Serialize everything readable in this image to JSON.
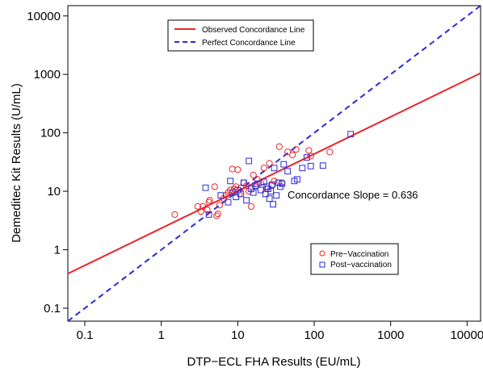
{
  "chart_data": {
    "type": "scatter",
    "xlabel": "DTP−ECL FHA Results (EU/mL)",
    "ylabel": "Demeditec Kit Results (U/mL)",
    "x_scale": "log",
    "y_scale": "log",
    "xlim": [
      0.06,
      15000
    ],
    "ylim": [
      0.06,
      15000
    ],
    "x_ticks": [
      0.1,
      1,
      10,
      100,
      1000,
      10000
    ],
    "y_ticks": [
      0.1,
      1,
      10,
      100,
      1000,
      10000
    ],
    "x_tick_labels": [
      "0.1",
      "1",
      "10",
      "100",
      "1000",
      "10000"
    ],
    "y_tick_labels": [
      "0.1",
      "1",
      "10",
      "100",
      "1000",
      "10000"
    ],
    "grid": false,
    "annotation": "Concordance Slope = 0.636",
    "lines": [
      {
        "name": "Observed Concordance Line",
        "color": "#e8262b",
        "style": "solid",
        "x": [
          0.06,
          15000
        ],
        "y": [
          0.39,
          1050
        ]
      },
      {
        "name": "Perfect Concordance Line",
        "color": "#2b2bd6",
        "style": "dashed",
        "x": [
          0.06,
          15000
        ],
        "y": [
          0.06,
          15000
        ]
      }
    ],
    "legend_lines": {
      "placement": "top-center",
      "entries": [
        "Observed Concordance Line",
        "Perfect Concordance Line"
      ]
    },
    "legend_points": {
      "placement": "bottom-right",
      "entries": [
        "Pre−Vaccination",
        "Post−vaccination"
      ]
    },
    "series": [
      {
        "name": "Pre−Vaccination",
        "marker": "circle",
        "color": "#e8262b",
        "points": [
          [
            1.5,
            4.0
          ],
          [
            3.0,
            5.5
          ],
          [
            3.3,
            4.5
          ],
          [
            3.5,
            5.5
          ],
          [
            4.0,
            4.8
          ],
          [
            4.2,
            6.5
          ],
          [
            4.3,
            7.0
          ],
          [
            5.0,
            12.0
          ],
          [
            5.3,
            3.8
          ],
          [
            5.5,
            4.1
          ],
          [
            5.8,
            5.8
          ],
          [
            6.5,
            7.5
          ],
          [
            7.0,
            8.5
          ],
          [
            7.5,
            9.5
          ],
          [
            8.0,
            10.5
          ],
          [
            8.5,
            24.0
          ],
          [
            9.0,
            11.0
          ],
          [
            9.5,
            12.0
          ],
          [
            10.0,
            23.5
          ],
          [
            10.5,
            9.0
          ],
          [
            11.0,
            11.5
          ],
          [
            12.0,
            14.0
          ],
          [
            13.0,
            12.5
          ],
          [
            14.0,
            10.0
          ],
          [
            15.0,
            5.5
          ],
          [
            16.0,
            19.0
          ],
          [
            17.0,
            12.0
          ],
          [
            18.0,
            16.0
          ],
          [
            20.0,
            14.0
          ],
          [
            22.0,
            25.0
          ],
          [
            24.0,
            11.0
          ],
          [
            26.0,
            30.0
          ],
          [
            28.0,
            12.5
          ],
          [
            30.0,
            15.0
          ],
          [
            35.0,
            58.0
          ],
          [
            38.0,
            14.0
          ],
          [
            45.0,
            47.0
          ],
          [
            52.0,
            42.0
          ],
          [
            58.0,
            52.0
          ],
          [
            85.0,
            50.0
          ],
          [
            90.0,
            40.0
          ],
          [
            160.0,
            47.0
          ]
        ]
      },
      {
        "name": "Post−vaccination",
        "marker": "square",
        "color": "#2b2bd6",
        "points": [
          [
            3.8,
            11.5
          ],
          [
            4.2,
            4.0
          ],
          [
            6.0,
            8.5
          ],
          [
            7.5,
            6.5
          ],
          [
            8.0,
            15.0
          ],
          [
            8.5,
            9.5
          ],
          [
            9.5,
            8.0
          ],
          [
            10.0,
            10.5
          ],
          [
            11.0,
            9.0
          ],
          [
            12.0,
            14.0
          ],
          [
            13.0,
            7.0
          ],
          [
            14.0,
            33.0
          ],
          [
            15.0,
            11.0
          ],
          [
            16.0,
            9.5
          ],
          [
            17.0,
            12.5
          ],
          [
            18.0,
            13.5
          ],
          [
            20.0,
            10.5
          ],
          [
            22.0,
            14.5
          ],
          [
            23.0,
            9.0
          ],
          [
            24.0,
            12.0
          ],
          [
            25.0,
            11.0
          ],
          [
            26.0,
            7.5
          ],
          [
            27.0,
            10.0
          ],
          [
            28.0,
            13.0
          ],
          [
            29.0,
            6.0
          ],
          [
            30.0,
            25.0
          ],
          [
            32.0,
            8.5
          ],
          [
            34.0,
            14.0
          ],
          [
            36.0,
            12.0
          ],
          [
            38.0,
            13.5
          ],
          [
            40.0,
            29.0
          ],
          [
            45.0,
            22.0
          ],
          [
            55.0,
            15.0
          ],
          [
            60.0,
            16.0
          ],
          [
            70.0,
            25.0
          ],
          [
            80.0,
            38.0
          ],
          [
            90.0,
            27.0
          ],
          [
            130.0,
            27.5
          ],
          [
            300.0,
            95.0
          ]
        ]
      }
    ]
  }
}
